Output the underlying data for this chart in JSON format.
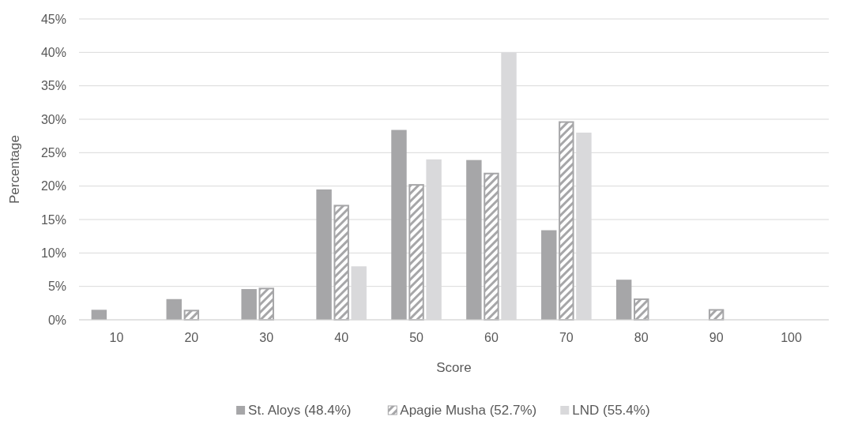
{
  "chart_data": {
    "type": "bar",
    "xlabel": "Score",
    "ylabel": "Percentage",
    "categories": [
      "10",
      "20",
      "30",
      "40",
      "50",
      "60",
      "70",
      "80",
      "90",
      "100"
    ],
    "series": [
      {
        "name": "St. Aloys (48.4%)",
        "color": "#a6a6a8",
        "values": [
          1.5,
          3.1,
          4.6,
          19.5,
          28.4,
          23.9,
          13.4,
          6.0,
          0,
          0
        ]
      },
      {
        "name": "Apagie Musha (52.7%)",
        "color": "#a6a6a8",
        "values": [
          0,
          1.5,
          4.8,
          17.2,
          20.3,
          22.0,
          29.7,
          3.2,
          1.6,
          0
        ]
      },
      {
        "name": "LND (55.4%)",
        "color": "#d9d9db",
        "values": [
          0,
          0,
          0,
          8.0,
          24.0,
          40.0,
          28.0,
          0,
          0,
          0
        ]
      }
    ],
    "ylim": [
      0,
      45
    ],
    "yticks": [
      {
        "value": 0,
        "label": "0%"
      },
      {
        "value": 5,
        "label": "5%"
      },
      {
        "value": 10,
        "label": "10%"
      },
      {
        "value": 15,
        "label": "15%"
      },
      {
        "value": 20,
        "label": "20%"
      },
      {
        "value": 25,
        "label": "25%"
      },
      {
        "value": 30,
        "label": "30%"
      },
      {
        "value": 35,
        "label": "35%"
      },
      {
        "value": 40,
        "label": "40%"
      },
      {
        "value": 45,
        "label": "45%"
      }
    ],
    "grid": "y",
    "legend": "bottom"
  }
}
